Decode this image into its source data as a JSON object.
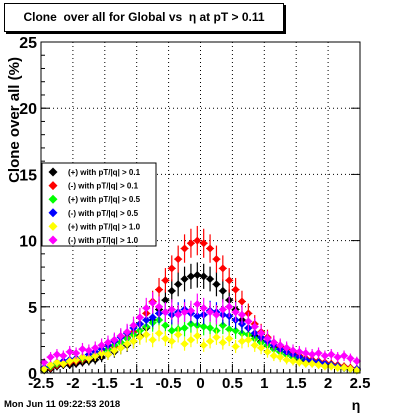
{
  "chart_data": {
    "type": "scatter",
    "title": "Clone  over all for Global vs  η at pT > 0.11",
    "xlabel": "η",
    "ylabel": "Clone  over all (%)",
    "xlim": [
      -2.5,
      2.5
    ],
    "ylim": [
      0,
      25
    ],
    "x_ticks": [
      "-2.5",
      "-2",
      "-1.5",
      "-1",
      "-0.5",
      "0",
      "0.5",
      "1",
      "1.5",
      "2",
      "2.5"
    ],
    "y_ticks": [
      "0",
      "5",
      "10",
      "15",
      "20",
      "25"
    ],
    "grid": true,
    "legend_position": "left-middle",
    "x": [
      -2.45,
      -2.35,
      -2.25,
      -2.15,
      -2.05,
      -1.95,
      -1.85,
      -1.75,
      -1.65,
      -1.55,
      -1.45,
      -1.35,
      -1.25,
      -1.15,
      -1.05,
      -0.95,
      -0.85,
      -0.75,
      -0.65,
      -0.55,
      -0.45,
      -0.35,
      -0.25,
      -0.15,
      -0.05,
      0.05,
      0.15,
      0.25,
      0.35,
      0.45,
      0.55,
      0.65,
      0.75,
      0.85,
      0.95,
      1.05,
      1.15,
      1.25,
      1.35,
      1.45,
      1.55,
      1.65,
      1.75,
      1.85,
      1.95,
      2.05,
      2.15,
      2.25,
      2.35,
      2.45
    ],
    "series": [
      {
        "name": "(+) with pT/|q| > 0.1",
        "color": "#000000",
        "values": [
          0.2,
          0.3,
          0.5,
          0.6,
          0.6,
          0.7,
          0.8,
          0.9,
          1.0,
          1.2,
          1.4,
          1.6,
          1.9,
          2.1,
          2.4,
          2.8,
          3.4,
          4.0,
          4.8,
          5.5,
          6.2,
          6.7,
          7.1,
          7.3,
          7.4,
          7.3,
          7.1,
          6.7,
          6.2,
          5.5,
          4.8,
          4.0,
          3.4,
          2.8,
          2.4,
          2.1,
          1.9,
          1.6,
          1.4,
          1.2,
          1.0,
          0.9,
          0.8,
          0.7,
          0.6,
          0.6,
          0.5,
          0.4,
          0.3,
          0.2
        ]
      },
      {
        "name": "(-) with pT/|q| > 0.1",
        "color": "#ff0000",
        "values": [
          0.3,
          0.4,
          0.6,
          0.7,
          0.8,
          0.9,
          1.0,
          1.1,
          1.3,
          1.5,
          1.8,
          2.0,
          2.3,
          2.7,
          3.1,
          3.7,
          4.5,
          5.4,
          6.3,
          7.0,
          7.9,
          8.6,
          9.4,
          9.8,
          10.0,
          9.8,
          9.4,
          8.6,
          7.9,
          7.0,
          6.3,
          5.4,
          4.5,
          3.7,
          3.1,
          2.7,
          2.3,
          2.0,
          1.8,
          1.5,
          1.3,
          1.1,
          1.0,
          0.9,
          0.8,
          0.7,
          0.6,
          0.5,
          0.4,
          0.3
        ]
      },
      {
        "name": "(+) with pT/|q| > 0.5",
        "color": "#00ff00",
        "values": [
          0.3,
          0.5,
          0.7,
          0.8,
          0.9,
          1.0,
          1.1,
          1.2,
          1.4,
          1.6,
          1.8,
          2.1,
          2.3,
          2.6,
          2.9,
          3.2,
          3.5,
          3.8,
          4.0,
          3.6,
          3.2,
          3.3,
          3.4,
          3.7,
          3.6,
          3.5,
          3.4,
          3.2,
          3.6,
          3.3,
          3.2,
          3.0,
          2.9,
          2.6,
          2.3,
          2.1,
          1.8,
          1.6,
          1.4,
          1.2,
          1.1,
          1.0,
          0.9,
          0.8,
          0.7,
          0.6,
          0.5,
          0.4,
          0.3,
          0.2
        ]
      },
      {
        "name": "(-) with pT/|q| > 0.5",
        "color": "#0000ff",
        "values": [
          0.4,
          0.6,
          0.8,
          0.9,
          1.0,
          1.1,
          1.2,
          1.4,
          1.6,
          1.8,
          2.1,
          2.4,
          2.7,
          3.0,
          3.4,
          3.7,
          4.0,
          4.2,
          4.5,
          4.6,
          4.4,
          4.6,
          4.8,
          4.5,
          4.3,
          4.4,
          4.7,
          4.6,
          4.4,
          4.3,
          4.0,
          3.7,
          3.4,
          3.0,
          2.7,
          2.4,
          2.1,
          1.8,
          1.6,
          1.4,
          1.2,
          1.0,
          0.9,
          0.8,
          0.7,
          0.6,
          0.5,
          0.4,
          0.3,
          0.3
        ]
      },
      {
        "name": "(+) with pT/|q| > 1.0",
        "color": "#ffff00",
        "values": [
          0.3,
          0.6,
          0.8,
          0.7,
          0.9,
          1.0,
          1.2,
          1.1,
          1.3,
          1.5,
          1.4,
          1.7,
          1.9,
          2.2,
          2.4,
          2.7,
          2.9,
          2.5,
          3.0,
          2.6,
          2.4,
          2.9,
          2.2,
          2.5,
          2.8,
          2.1,
          2.4,
          2.7,
          2.3,
          2.6,
          2.0,
          2.4,
          2.5,
          2.1,
          1.9,
          1.6,
          1.3,
          1.2,
          1.0,
          0.9,
          0.8,
          0.7,
          0.7,
          0.6,
          0.5,
          0.5,
          0.4,
          0.4,
          0.3,
          0.2
        ]
      },
      {
        "name": "(-) with pT/|q| > 1.0",
        "color": "#ff00ff",
        "values": [
          0.8,
          1.2,
          1.4,
          1.3,
          1.6,
          1.5,
          1.8,
          1.7,
          1.9,
          2.1,
          2.3,
          2.5,
          2.8,
          3.1,
          3.6,
          4.2,
          4.9,
          5.3,
          5.0,
          4.6,
          4.8,
          4.4,
          4.6,
          4.7,
          5.2,
          4.9,
          4.6,
          4.4,
          4.8,
          5.0,
          4.6,
          4.4,
          3.9,
          3.5,
          3.0,
          2.6,
          2.3,
          2.1,
          1.9,
          1.7,
          1.6,
          1.5,
          1.4,
          1.5,
          1.3,
          1.4,
          1.2,
          1.3,
          1.1,
          0.9
        ]
      }
    ]
  },
  "footer": {
    "timestamp": "Mon Jun 11 09:22:53 2018"
  }
}
